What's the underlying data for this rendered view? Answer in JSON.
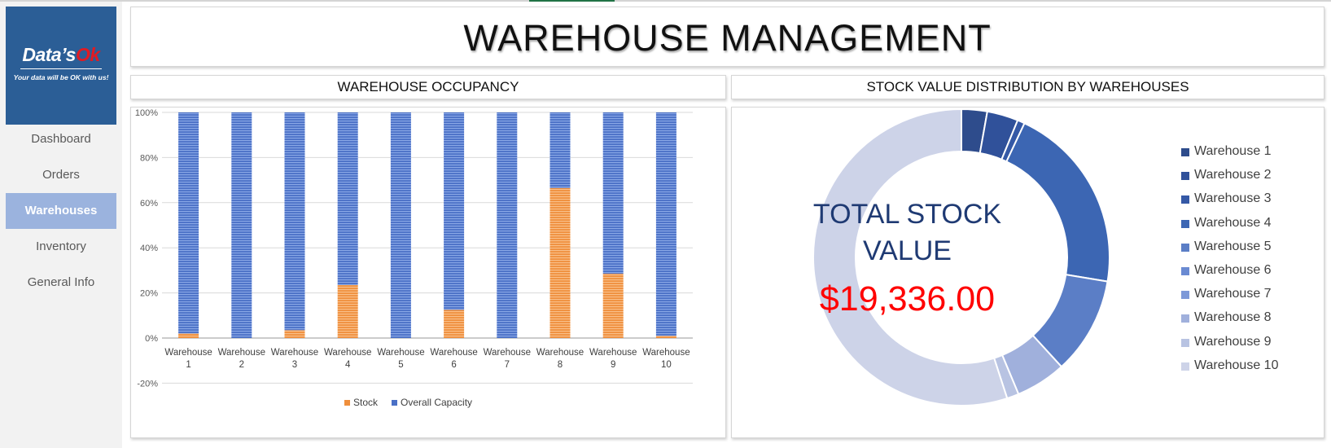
{
  "app": {
    "logo": {
      "brand_main": "Data’s",
      "brand_accent": "Ok",
      "tagline": "Your data will be OK with us!"
    },
    "nav": [
      {
        "label": "Dashboard",
        "active": false
      },
      {
        "label": "Orders",
        "active": false
      },
      {
        "label": "Warehouses",
        "active": true
      },
      {
        "label": "Inventory",
        "active": false
      },
      {
        "label": "General Info",
        "active": false
      }
    ]
  },
  "header": {
    "title": "WAREHOUSE MANAGEMENT"
  },
  "occupancy": {
    "section_title": "WAREHOUSE OCCUPANCY"
  },
  "distribution": {
    "section_title": "STOCK VALUE DISTRIBUTION BY WAREHOUSES",
    "center_label_line1": "TOTAL STOCK",
    "center_label_line2": "VALUE",
    "total_value": "$19,336.00"
  },
  "colors": {
    "stock": "#f4a460",
    "capacity": "#6b8fd6",
    "total_value": "#ff0000",
    "center_label": "#1f3a73",
    "nav_active_bg": "#9bb3de",
    "logo_bg": "#2b5e96"
  },
  "chart_data": [
    {
      "type": "bar",
      "stacked": true,
      "categories": [
        "Warehouse 1",
        "Warehouse 2",
        "Warehouse 3",
        "Warehouse 4",
        "Warehouse 5",
        "Warehouse 6",
        "Warehouse 7",
        "Warehouse 8",
        "Warehouse 9",
        "Warehouse 10"
      ],
      "series": [
        {
          "name": "Stock",
          "values": [
            0.02,
            0.0,
            0.035,
            0.235,
            0.0,
            0.125,
            0.0,
            0.665,
            0.285,
            0.01
          ],
          "color": "#f4a460"
        },
        {
          "name": "Overall Capacity",
          "values": [
            0.98,
            1.0,
            0.965,
            0.765,
            1.0,
            0.875,
            1.0,
            0.335,
            0.715,
            0.99
          ],
          "color": "#6b8fd6"
        }
      ],
      "ylim": [
        -0.2,
        1.0
      ],
      "yticks": [
        "-20%",
        "0%",
        "20%",
        "40%",
        "60%",
        "80%",
        "100%"
      ],
      "grid": true,
      "legend_position": "bottom"
    },
    {
      "type": "pie",
      "donut": true,
      "labels": [
        "Warehouse 1",
        "Warehouse 2",
        "Warehouse 3",
        "Warehouse 4",
        "Warehouse 5",
        "Warehouse 6",
        "Warehouse 7",
        "Warehouse 8",
        "Warehouse 9",
        "Warehouse 10"
      ],
      "values": [
        2.8,
        3.4,
        0.8,
        20.6,
        10.6,
        0.0,
        0.0,
        5.5,
        1.3,
        55.0
      ],
      "colors": [
        "#2e4c8c",
        "#30519a",
        "#3559a6",
        "#3c66b3",
        "#5b7ec6",
        "#6a8ad2",
        "#7d99d8",
        "#a0b0dc",
        "#b8c3e2",
        "#cdd3e8"
      ],
      "legend_position": "right"
    }
  ]
}
